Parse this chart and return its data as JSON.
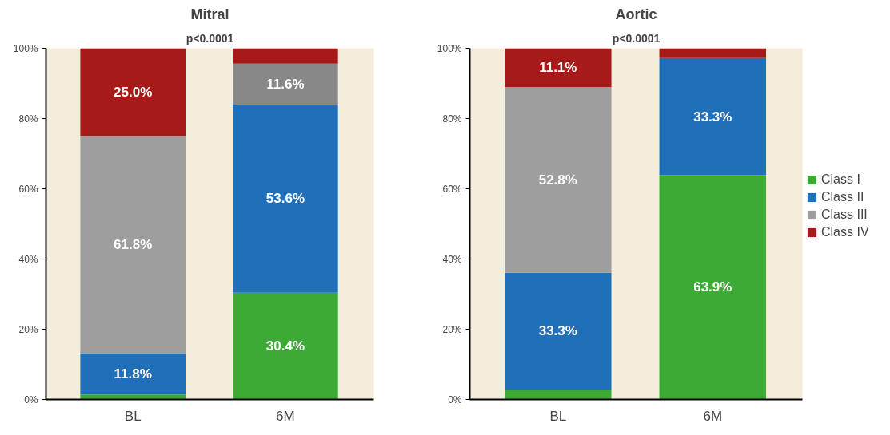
{
  "chart_data": [
    {
      "type": "bar",
      "title": "Mitral",
      "subtitle": "p<0.0001",
      "categories": [
        "BL",
        "6M"
      ],
      "stacked": true,
      "legend": false,
      "grid": false,
      "ylim": [
        0,
        100
      ],
      "yticks": [
        {
          "value": 0,
          "label": "0%"
        },
        {
          "value": 20,
          "label": "20%"
        },
        {
          "value": 40,
          "label": "40%"
        },
        {
          "value": 60,
          "label": "60%"
        },
        {
          "value": 80,
          "label": "80%"
        },
        {
          "value": 100,
          "label": "100%"
        }
      ],
      "series": [
        {
          "color": "#3caa35",
          "values": [
            1.4,
            30.4
          ],
          "value_labels": [
            null,
            "30.4%"
          ]
        },
        {
          "color": "#1f70b8",
          "values": [
            11.8,
            53.6
          ],
          "value_labels": [
            "11.8%",
            "53.6%"
          ]
        },
        {
          "colors": [
            "#9e9e9e",
            "#888888"
          ],
          "values": [
            61.8,
            11.6
          ],
          "value_labels": [
            "61.8%",
            "11.6%"
          ]
        },
        {
          "color": "#a61a19",
          "values": [
            25.0,
            4.4
          ],
          "value_labels": [
            "25.0%",
            null
          ]
        }
      ]
    },
    {
      "type": "bar",
      "title": "Aortic",
      "subtitle": "p<0.0001",
      "categories": [
        "BL",
        "6M"
      ],
      "stacked": true,
      "legend": "right",
      "grid": false,
      "ylim": [
        0,
        100
      ],
      "yticks": [
        {
          "value": 0,
          "label": "0%"
        },
        {
          "value": 20,
          "label": "20%"
        },
        {
          "value": 40,
          "label": "40%"
        },
        {
          "value": 60,
          "label": "60%"
        },
        {
          "value": 80,
          "label": "80%"
        },
        {
          "value": 100,
          "label": "100%"
        }
      ],
      "series": [
        {
          "name": "Class I",
          "color": "#3caa35",
          "values": [
            2.8,
            63.9
          ],
          "value_labels": [
            null,
            "63.9%"
          ]
        },
        {
          "name": "Class II",
          "color": "#1f70b8",
          "values": [
            33.3,
            33.3
          ],
          "value_labels": [
            "33.3%",
            "33.3%"
          ]
        },
        {
          "name": "Class III",
          "color": "#9e9e9e",
          "values": [
            52.8,
            0
          ],
          "value_labels": [
            "52.8%",
            null
          ]
        },
        {
          "name": "Class IV",
          "color": "#a61a19",
          "values": [
            11.1,
            2.8
          ],
          "value_labels": [
            "11.1%",
            null
          ]
        }
      ]
    }
  ]
}
